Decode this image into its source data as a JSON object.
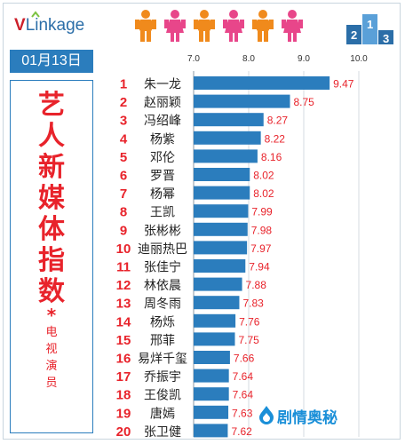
{
  "brand": {
    "logo_v": "V",
    "logo_rest": "Link",
    "logo_age": "age"
  },
  "date": "01月13日",
  "sidebar": {
    "title_chars": [
      "艺",
      "人",
      "新",
      "媒",
      "体",
      "指",
      "数"
    ],
    "star": "*",
    "subtitle_chars": [
      "电",
      "视",
      "演",
      "员"
    ]
  },
  "watermark": "剧情奥秘",
  "colors": {
    "bar": "#2b7dbd",
    "rank": "#e8232b",
    "value": "#e8232b",
    "accent": "#2b7dbd"
  },
  "chart_data": {
    "type": "bar",
    "orientation": "horizontal",
    "xlim": [
      7.0,
      10.0
    ],
    "xticks": [
      7.0,
      8.0,
      9.0,
      10.0
    ],
    "tick_labels": [
      "7.0",
      "8.0",
      "9.0",
      "10.0"
    ],
    "grid": true,
    "ranks": [
      "1",
      "2",
      "3",
      "4",
      "5",
      "6",
      "7",
      "8",
      "9",
      "10",
      "11",
      "12",
      "13",
      "14",
      "15",
      "16",
      "17",
      "18",
      "19",
      "20"
    ],
    "categories": [
      "朱一龙",
      "赵丽颖",
      "冯绍峰",
      "杨紫",
      "邓伦",
      "罗晋",
      "杨幂",
      "王凯",
      "张彬彬",
      "迪丽热巴",
      "张佳宁",
      "林依晨",
      "周冬雨",
      "杨烁",
      "邢菲",
      "易烊千玺",
      "乔振宇",
      "王俊凯",
      "唐嫣",
      "张卫健"
    ],
    "values": [
      9.47,
      8.75,
      8.27,
      8.22,
      8.16,
      8.02,
      8.02,
      7.99,
      7.98,
      7.97,
      7.94,
      7.88,
      7.83,
      7.76,
      7.75,
      7.66,
      7.64,
      7.64,
      7.63,
      7.62
    ],
    "value_labels": [
      "9.47",
      "8.75",
      "8.27",
      "8.22",
      "8.16",
      "8.02",
      "8.02",
      "7.99",
      "7.98",
      "7.97",
      "7.94",
      "7.88",
      "7.83",
      "7.76",
      "7.75",
      "7.66",
      "7.64",
      "7.64",
      "7.63",
      "7.62"
    ]
  }
}
